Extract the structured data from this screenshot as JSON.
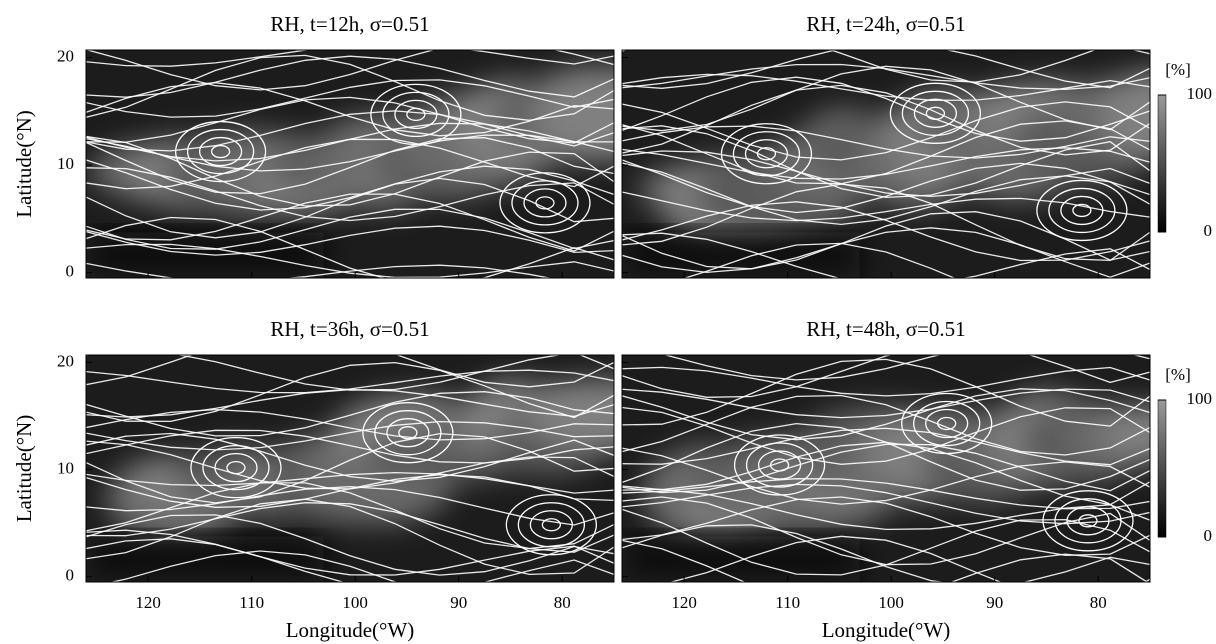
{
  "chart_data": [
    {
      "type": "streamplot",
      "title": "RH, t=12h, σ=0.51",
      "ylabel": "Latitude(°N)",
      "xlim": [
        126,
        75
      ],
      "xticks": [
        120,
        110,
        100,
        90,
        80
      ],
      "ylim": [
        -0.5,
        20.7
      ],
      "yticks": [
        0,
        10,
        20
      ]
    },
    {
      "type": "streamplot",
      "title": "RH, t=24h, σ=0.51",
      "xlim": [
        126,
        75
      ],
      "xticks": [
        120,
        110,
        100,
        90,
        80
      ],
      "ylim": [
        -0.5,
        20.7
      ],
      "yticks": [
        0,
        10,
        20
      ],
      "colorbar": {
        "label": "[%]",
        "lim": [
          0,
          100
        ],
        "ticks": [
          0,
          100
        ]
      }
    },
    {
      "type": "streamplot",
      "title": "RH, t=36h, σ=0.51",
      "ylabel": "Latitude(°N)",
      "xlabel": "Longitude(°W)",
      "xlim": [
        126,
        75
      ],
      "xticks": [
        120,
        110,
        100,
        90,
        80
      ],
      "ylim": [
        -0.5,
        20.7
      ],
      "yticks": [
        0,
        10,
        20
      ]
    },
    {
      "type": "streamplot",
      "title": "RH, t=48h, σ=0.51",
      "xlabel": "Longitude(°W)",
      "xlim": [
        126,
        75
      ],
      "xticks": [
        120,
        110,
        100,
        90,
        80
      ],
      "ylim": [
        -0.5,
        20.7
      ],
      "yticks": [
        0,
        10,
        20
      ],
      "colorbar": {
        "label": "[%]",
        "lim": [
          0,
          100
        ],
        "ticks": [
          0,
          100
        ]
      }
    }
  ]
}
